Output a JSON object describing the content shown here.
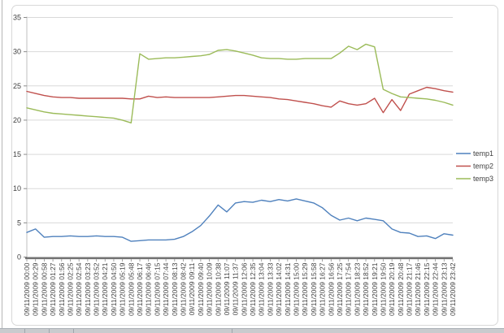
{
  "chart_data": {
    "type": "line",
    "title": "",
    "x": [
      "09/11/2009 00:00",
      "09/11/2009 00:29",
      "09/11/2009 00:58",
      "09/11/2009 01:27",
      "09/11/2009 01:56",
      "09/11/2009 02:25",
      "09/11/2009 02:54",
      "09/11/2009 03:23",
      "09/11/2009 03:52",
      "09/11/2009 04:21",
      "09/11/2009 04:50",
      "09/11/2009 05:19",
      "09/11/2009 05:48",
      "09/11/2009 06:17",
      "09/11/2009 06:46",
      "09/11/2009 07:15",
      "09/11/2009 07:44",
      "09/11/2009 08:13",
      "09/11/2009 08:42",
      "09/11/2009 09:11",
      "09/11/2009 09:40",
      "09/11/2009 10:09",
      "09/11/2009 10:38",
      "09/11/2009 11:07",
      "09/11/2009 11:37",
      "09/11/2009 12:06",
      "09/11/2009 12:35",
      "09/11/2009 13:04",
      "09/11/2009 13:33",
      "09/11/2009 14:02",
      "09/11/2009 14:31",
      "09/11/2009 15:00",
      "09/11/2009 15:29",
      "09/11/2009 15:58",
      "09/11/2009 16:27",
      "09/11/2009 16:56",
      "09/11/2009 17:25",
      "09/11/2009 17:54",
      "09/11/2009 18:23",
      "09/11/2009 18:52",
      "09/11/2009 19:21",
      "09/11/2009 19:50",
      "09/11/2009 20:19",
      "09/11/2009 20:48",
      "09/11/2009 21:17",
      "09/11/2009 21:46",
      "09/11/2009 22:15",
      "09/11/2009 22:44",
      "09/11/2009 23:13",
      "09/11/2009 23:42"
    ],
    "series": [
      {
        "name": "temp1",
        "color": "#4F81BD",
        "values": [
          3.6,
          4.1,
          2.9,
          3.0,
          3.0,
          3.1,
          3.0,
          3.0,
          3.1,
          3.0,
          3.0,
          2.9,
          2.3,
          2.4,
          2.5,
          2.5,
          2.5,
          2.6,
          3.0,
          3.7,
          4.6,
          6.0,
          7.6,
          6.6,
          7.9,
          8.1,
          8.0,
          8.3,
          8.1,
          8.4,
          8.2,
          8.5,
          8.2,
          7.9,
          7.2,
          6.1,
          5.4,
          5.7,
          5.3,
          5.7,
          5.5,
          5.3,
          4.1,
          3.6,
          3.5,
          3.0,
          3.1,
          2.7,
          3.4,
          3.2
        ]
      },
      {
        "name": "temp2",
        "color": "#C0504D",
        "values": [
          24.2,
          23.9,
          23.6,
          23.4,
          23.3,
          23.3,
          23.2,
          23.2,
          23.2,
          23.2,
          23.2,
          23.2,
          23.1,
          23.1,
          23.5,
          23.3,
          23.4,
          23.3,
          23.3,
          23.3,
          23.3,
          23.3,
          23.4,
          23.5,
          23.6,
          23.6,
          23.5,
          23.4,
          23.3,
          23.1,
          23.0,
          22.8,
          22.6,
          22.4,
          22.1,
          21.9,
          22.8,
          22.4,
          22.2,
          22.4,
          23.2,
          21.1,
          23.0,
          21.4,
          23.8,
          24.3,
          24.8,
          24.6,
          24.3,
          24.1
        ]
      },
      {
        "name": "temp3",
        "color": "#9BBB59",
        "values": [
          21.8,
          21.5,
          21.2,
          21.0,
          20.9,
          20.8,
          20.7,
          20.6,
          20.5,
          20.4,
          20.3,
          20.0,
          19.6,
          29.7,
          28.9,
          29.0,
          29.1,
          29.1,
          29.2,
          29.3,
          29.4,
          29.6,
          30.2,
          30.3,
          30.1,
          29.8,
          29.5,
          29.1,
          29.0,
          29.0,
          28.9,
          28.9,
          29.0,
          29.0,
          29.0,
          29.0,
          29.8,
          30.8,
          30.3,
          31.1,
          30.7,
          24.5,
          23.9,
          23.4,
          23.3,
          23.2,
          23.1,
          22.9,
          22.6,
          22.2
        ]
      }
    ],
    "ylim": [
      0,
      35
    ],
    "yticks": [
      0,
      5,
      10,
      15,
      20,
      25,
      30,
      35
    ],
    "grid": true,
    "legend_position": "right",
    "x_label_rotation": -90,
    "xlabel": "",
    "ylabel": ""
  },
  "colors": {
    "gridline": "#D9D9D9",
    "axis_line": "#BFBFBF",
    "axis_bar": "#737373",
    "tick": "#8C8C8C",
    "axis_text": "#3F3F3F",
    "legend_text": "#3F3F3F"
  }
}
